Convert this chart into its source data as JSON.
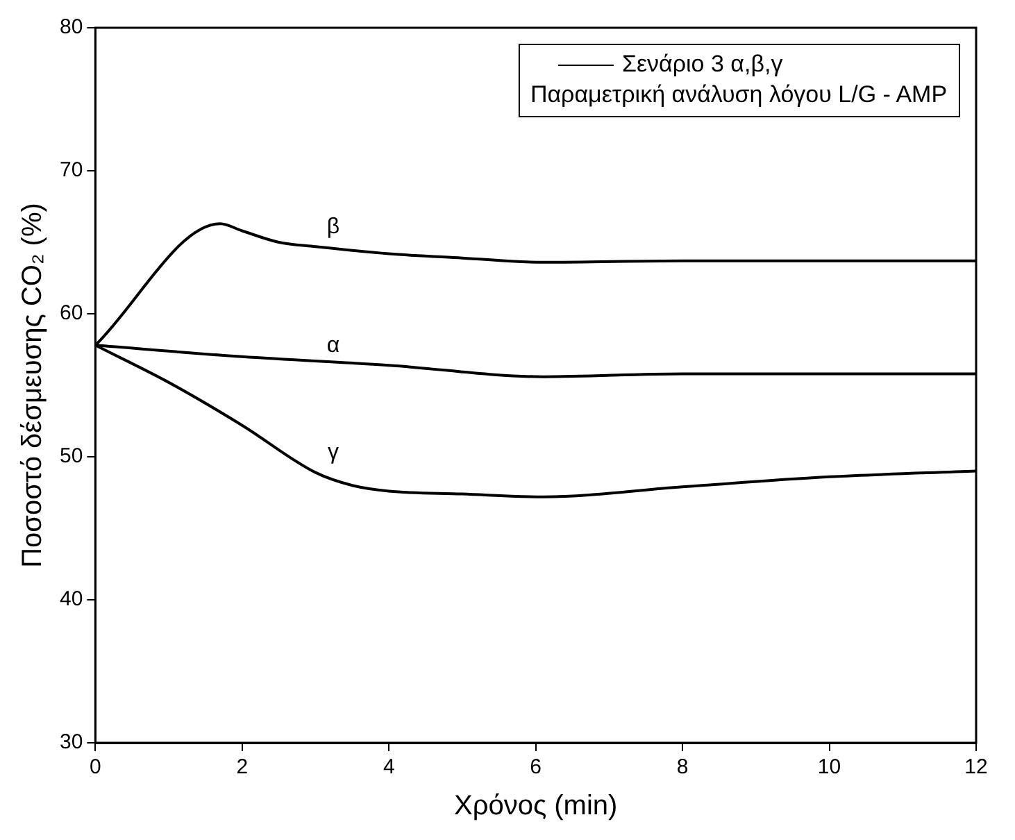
{
  "chart_data": {
    "type": "line",
    "xlabel": "Χρόνος (min)",
    "ylabel": "Ποσοστό δέσμευσης CO₂ (%)",
    "annotations": [
      "Σενάριο 3 α,β,γ",
      "Παραμετρική ανάλυση λόγου L/G - AMP"
    ],
    "xlim": [
      0,
      12
    ],
    "xticks": [
      0,
      2,
      4,
      6,
      8,
      10,
      12
    ],
    "ylim": [
      30,
      80
    ],
    "yticks": [
      30,
      40,
      50,
      60,
      70,
      80
    ],
    "grid": false,
    "marker": "none",
    "line_style": "solid",
    "series": [
      {
        "name": "β",
        "color": "#000000",
        "x": [
          0,
          1.7,
          2.0,
          2.5,
          3.0,
          4.0,
          5.0,
          6.1,
          8,
          12
        ],
        "values": [
          57.8,
          66.3,
          65.8,
          65.0,
          64.7,
          64.2,
          63.9,
          63.6,
          63.7,
          63.7
        ]
      },
      {
        "name": "α",
        "color": "#000000",
        "x": [
          0,
          2,
          4,
          6.1,
          8,
          12
        ],
        "values": [
          57.8,
          57.0,
          56.4,
          55.6,
          55.8,
          55.8
        ]
      },
      {
        "name": "γ",
        "color": "#000000",
        "x": [
          0,
          1,
          2,
          3,
          3.5,
          4,
          5,
          6.1,
          8,
          10,
          12
        ],
        "values": [
          57.8,
          55.2,
          52.2,
          48.9,
          48.0,
          47.6,
          47.4,
          47.2,
          47.9,
          48.6,
          49.0
        ]
      }
    ]
  }
}
